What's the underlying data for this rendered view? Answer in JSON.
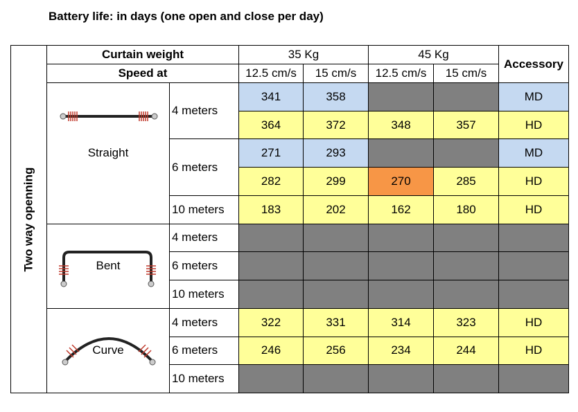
{
  "title": "Battery life: in days (one open and close per day)",
  "header": {
    "curtain_weight": "Curtain weight",
    "speed_at": "Speed at",
    "weights": [
      "35 Kg",
      "45 Kg"
    ],
    "speeds": [
      "12.5 cm/s",
      "15 cm/s",
      "12.5 cm/s",
      "15 cm/s"
    ],
    "accessory": "Accessory"
  },
  "side_label": "Two way openning",
  "groups": [
    {
      "shape": "Straight",
      "lengths": [
        {
          "label": "4 meters",
          "rows": [
            {
              "values": [
                341,
                358,
                null,
                null
              ],
              "accessory": "MD",
              "colors": [
                "#c5d9f1",
                "#c5d9f1",
                "#808080",
                "#808080",
                "#c5d9f1"
              ]
            },
            {
              "values": [
                364,
                372,
                348,
                357
              ],
              "accessory": "HD",
              "colors": [
                "#ffff99",
                "#ffff99",
                "#ffff99",
                "#ffff99",
                "#ffff99"
              ]
            }
          ]
        },
        {
          "label": "6 meters",
          "rows": [
            {
              "values": [
                271,
                293,
                null,
                null
              ],
              "accessory": "MD",
              "colors": [
                "#c5d9f1",
                "#c5d9f1",
                "#808080",
                "#808080",
                "#c5d9f1"
              ]
            },
            {
              "values": [
                282,
                299,
                270,
                285
              ],
              "accessory": "HD",
              "colors": [
                "#ffff99",
                "#ffff99",
                "#f79646",
                "#ffff99",
                "#ffff99"
              ]
            }
          ]
        },
        {
          "label": "10 meters",
          "rows": [
            {
              "values": [
                183,
                202,
                162,
                180
              ],
              "accessory": "HD",
              "colors": [
                "#ffff99",
                "#ffff99",
                "#ffff99",
                "#ffff99",
                "#ffff99"
              ]
            }
          ]
        }
      ]
    },
    {
      "shape": "Bent",
      "lengths": [
        {
          "label": "4 meters",
          "rows": [
            {
              "values": [
                null,
                null,
                null,
                null
              ],
              "accessory": null,
              "colors": [
                "#808080",
                "#808080",
                "#808080",
                "#808080",
                "#808080"
              ]
            }
          ]
        },
        {
          "label": "6 meters",
          "rows": [
            {
              "values": [
                null,
                null,
                null,
                null
              ],
              "accessory": null,
              "colors": [
                "#808080",
                "#808080",
                "#808080",
                "#808080",
                "#808080"
              ]
            }
          ]
        },
        {
          "label": "10 meters",
          "rows": [
            {
              "values": [
                null,
                null,
                null,
                null
              ],
              "accessory": null,
              "colors": [
                "#808080",
                "#808080",
                "#808080",
                "#808080",
                "#808080"
              ]
            }
          ]
        }
      ]
    },
    {
      "shape": "Curve",
      "lengths": [
        {
          "label": "4 meters",
          "rows": [
            {
              "values": [
                322,
                331,
                314,
                323
              ],
              "accessory": "HD",
              "colors": [
                "#ffff99",
                "#ffff99",
                "#ffff99",
                "#ffff99",
                "#ffff99"
              ]
            }
          ]
        },
        {
          "label": "6 meters",
          "rows": [
            {
              "values": [
                246,
                256,
                234,
                244
              ],
              "accessory": "HD",
              "colors": [
                "#ffff99",
                "#ffff99",
                "#ffff99",
                "#ffff99",
                "#ffff99"
              ]
            }
          ]
        },
        {
          "label": "10 meters",
          "rows": [
            {
              "values": [
                null,
                null,
                null,
                null
              ],
              "accessory": null,
              "colors": [
                "#808080",
                "#808080",
                "#808080",
                "#808080",
                "#808080"
              ]
            }
          ]
        }
      ]
    }
  ]
}
